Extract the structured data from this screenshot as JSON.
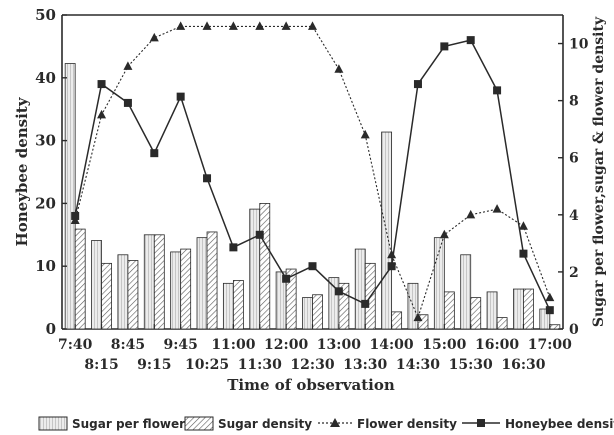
{
  "chart_data": {
    "type": "bar",
    "categories": [
      "7:40",
      "8:15",
      "8:45",
      "9:15",
      "9:45",
      "10:25",
      "11:00",
      "11:30",
      "12:00",
      "12:30",
      "13:00",
      "13:30",
      "14:00",
      "14:30",
      "15:00",
      "15:30",
      "16:00",
      "16:30",
      "17:00"
    ],
    "xticks_top": [
      "7:40",
      "8:45",
      "9:45",
      "11:00",
      "12:00",
      "13:00",
      "14:00",
      "15:00",
      "16:00",
      "17:00"
    ],
    "xticks_bottom": [
      "8:15",
      "9:15",
      "10:25",
      "11:30",
      "12:30",
      "13:30",
      "14:30",
      "15:30",
      "16:30"
    ],
    "xlabel": "Time of observation",
    "ylabel_left": "Honeybee density",
    "ylabel_right": "Sugar per flower,sugar & flower density",
    "ylim_left": [
      0,
      50
    ],
    "ylim_right": [
      0,
      11
    ],
    "yticks_left": [
      0,
      10,
      20,
      30,
      40,
      50
    ],
    "yticks_right": [
      0,
      2,
      4,
      6,
      8,
      10
    ],
    "series": [
      {
        "name": "Sugar per flower",
        "kind": "bar",
        "axis": "right",
        "pattern": "vertical-lines",
        "values": [
          9.3,
          3.1,
          2.6,
          3.3,
          2.7,
          3.2,
          1.6,
          4.2,
          2.0,
          1.1,
          1.8,
          2.8,
          6.9,
          1.6,
          3.2,
          2.6,
          1.3,
          1.4,
          0.7
        ]
      },
      {
        "name": "Sugar density",
        "kind": "bar",
        "axis": "right",
        "pattern": "diagonal-lines",
        "values": [
          3.5,
          2.3,
          2.4,
          3.3,
          2.8,
          3.4,
          1.7,
          4.4,
          2.1,
          1.2,
          1.6,
          2.3,
          0.6,
          0.5,
          1.3,
          1.1,
          0.4,
          1.4,
          0.15
        ]
      },
      {
        "name": "Flower density",
        "kind": "line",
        "axis": "right",
        "marker": "triangle",
        "dashed": true,
        "values": [
          3.8,
          7.5,
          9.2,
          10.2,
          10.6,
          10.6,
          10.6,
          10.6,
          10.6,
          10.6,
          9.1,
          6.8,
          2.6,
          0.4,
          3.3,
          4.0,
          4.2,
          3.6,
          1.1
        ]
      },
      {
        "name": "Honeybee density",
        "kind": "line",
        "axis": "left",
        "marker": "square",
        "dashed": false,
        "values": [
          18,
          39,
          36,
          28,
          37,
          24,
          13,
          15,
          8,
          10,
          6,
          4,
          10,
          39,
          45,
          46,
          38,
          12,
          3
        ]
      }
    ],
    "grid": false,
    "legend_position": "bottom"
  },
  "legend": {
    "sugar_per_flower": "Sugar per flower",
    "sugar_density": "Sugar density",
    "flower_density": "Flower density",
    "honeybee_density": "Honeybee density"
  },
  "colors": {
    "ink": "#2a2a2a",
    "bar_fill": "#e6e6e6",
    "background": "#ffffff"
  }
}
